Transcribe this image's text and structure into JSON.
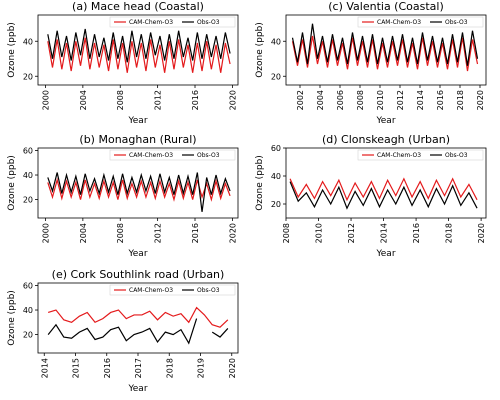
{
  "chart_data": [
    {
      "type": "line",
      "title": "(a) Mace head  (Coastal)",
      "xlabel": "Year",
      "ylabel": "Ozone (ppb)",
      "legend": "upper right",
      "xlim": [
        1999.2,
        2020.6
      ],
      "ylim": [
        15,
        55
      ],
      "xticks": [
        2000,
        2004,
        2008,
        2012,
        2016,
        2020
      ],
      "yticks": [
        20,
        40
      ],
      "x": [
        2000.25,
        2000.75,
        2001.25,
        2001.75,
        2002.25,
        2002.75,
        2003.25,
        2003.75,
        2004.25,
        2004.75,
        2005.25,
        2005.75,
        2006.25,
        2006.75,
        2007.25,
        2007.75,
        2008.25,
        2008.75,
        2009.25,
        2009.75,
        2010.25,
        2010.75,
        2011.25,
        2011.75,
        2012.25,
        2012.75,
        2013.25,
        2013.75,
        2014.25,
        2014.75,
        2015.25,
        2015.75,
        2016.25,
        2016.75,
        2017.25,
        2017.75,
        2018.25,
        2018.75,
        2019.25,
        2019.75
      ],
      "series": [
        {
          "name": "CAM-Chem-O3",
          "color": "#e41a1c",
          "values": [
            40,
            25,
            41,
            24,
            39,
            23,
            40,
            26,
            42,
            24,
            39,
            25,
            38,
            23,
            41,
            24,
            39,
            22,
            40,
            25,
            39,
            23,
            41,
            25,
            38,
            22,
            40,
            24,
            41,
            25,
            38,
            22,
            39,
            23,
            40,
            24,
            38,
            22,
            39,
            27
          ]
        },
        {
          "name": "Obs-O3",
          "color": "#000000",
          "values": [
            44,
            30,
            46,
            31,
            43,
            29,
            45,
            32,
            47,
            30,
            44,
            31,
            42,
            29,
            45,
            30,
            43,
            28,
            46,
            31,
            44,
            30,
            45,
            32,
            43,
            29,
            44,
            30,
            46,
            31,
            42,
            29,
            45,
            30,
            44,
            31,
            43,
            30,
            45,
            33
          ]
        }
      ]
    },
    {
      "type": "line",
      "title": "(c) Valentia (Coastal)",
      "xlabel": "Year",
      "ylabel": "Ozone (ppb)",
      "legend": "upper right",
      "xlim": [
        2000.6,
        2020.6
      ],
      "ylim": [
        15,
        55
      ],
      "xticks": [
        2002,
        2004,
        2006,
        2008,
        2010,
        2012,
        2014,
        2016,
        2018,
        2020
      ],
      "yticks": [
        20,
        40
      ],
      "x": [
        2001.25,
        2001.75,
        2002.25,
        2002.75,
        2003.25,
        2003.75,
        2004.25,
        2004.75,
        2005.25,
        2005.75,
        2006.25,
        2006.75,
        2007.25,
        2007.75,
        2008.25,
        2008.75,
        2009.25,
        2009.75,
        2010.25,
        2010.75,
        2011.25,
        2011.75,
        2012.25,
        2012.75,
        2013.25,
        2013.75,
        2014.25,
        2014.75,
        2015.25,
        2015.75,
        2016.25,
        2016.75,
        2017.25,
        2017.75,
        2018.25,
        2018.75,
        2019.25,
        2019.75
      ],
      "series": [
        {
          "name": "CAM-Chem-O3",
          "color": "#e41a1c",
          "values": [
            40,
            26,
            41,
            25,
            43,
            27,
            40,
            25,
            41,
            26,
            39,
            24,
            42,
            26,
            40,
            25,
            41,
            24,
            39,
            25,
            40,
            26,
            41,
            25,
            39,
            24,
            42,
            26,
            40,
            25,
            39,
            24,
            41,
            25,
            42,
            23,
            41,
            27
          ]
        },
        {
          "name": "Obs-O3",
          "color": "#000000",
          "values": [
            42,
            28,
            45,
            27,
            50,
            30,
            43,
            28,
            44,
            29,
            42,
            27,
            45,
            29,
            43,
            28,
            44,
            27,
            42,
            28,
            43,
            29,
            44,
            28,
            42,
            27,
            45,
            29,
            43,
            28,
            42,
            27,
            44,
            28,
            45,
            26,
            46,
            30
          ]
        }
      ]
    },
    {
      "type": "line",
      "title": "(b) Monaghan (Rural)",
      "xlabel": "Year",
      "ylabel": "Ozone (ppb)",
      "legend": "upper right",
      "xlim": [
        1999.2,
        2020.6
      ],
      "ylim": [
        5,
        62
      ],
      "xticks": [
        2000,
        2004,
        2008,
        2012,
        2016,
        2020
      ],
      "yticks": [
        20,
        40,
        60
      ],
      "x": [
        2000.25,
        2000.75,
        2001.25,
        2001.75,
        2002.25,
        2002.75,
        2003.25,
        2003.75,
        2004.25,
        2004.75,
        2005.25,
        2005.75,
        2006.25,
        2006.75,
        2007.25,
        2007.75,
        2008.25,
        2008.75,
        2009.25,
        2009.75,
        2010.25,
        2010.75,
        2011.25,
        2011.75,
        2012.25,
        2012.75,
        2013.25,
        2013.75,
        2014.25,
        2014.75,
        2015.25,
        2015.75,
        2016.25,
        2016.75,
        2017.25,
        2017.75,
        2018.25,
        2018.75,
        2019.25,
        2019.75
      ],
      "series": [
        {
          "name": "CAM-Chem-O3",
          "color": "#e41a1c",
          "values": [
            34,
            22,
            36,
            21,
            35,
            22,
            34,
            20,
            36,
            22,
            33,
            21,
            35,
            22,
            34,
            20,
            36,
            21,
            33,
            22,
            35,
            22,
            34,
            21,
            35,
            22,
            33,
            20,
            35,
            21,
            34,
            20,
            36,
            22,
            33,
            20,
            35,
            21,
            33,
            23
          ]
        },
        {
          "name": "Obs-O3",
          "color": "#000000",
          "values": [
            38,
            27,
            42,
            25,
            40,
            26,
            39,
            24,
            41,
            27,
            37,
            25,
            40,
            26,
            39,
            24,
            41,
            25,
            38,
            26,
            40,
            27,
            39,
            25,
            41,
            26,
            38,
            24,
            40,
            25,
            39,
            24,
            42,
            10,
            38,
            24,
            40,
            25,
            37,
            27
          ]
        }
      ]
    },
    {
      "type": "line",
      "title": "(d) Clonskeagh (Urban)",
      "xlabel": "Year",
      "ylabel": "Ozone (ppb)",
      "legend": "upper right",
      "xlim": [
        2008.0,
        2020.3
      ],
      "ylim": [
        10,
        60
      ],
      "xticks": [
        2008,
        2010,
        2012,
        2014,
        2016,
        2018,
        2020
      ],
      "yticks": [
        20,
        40,
        60
      ],
      "x": [
        2008.25,
        2008.75,
        2009.25,
        2009.75,
        2010.25,
        2010.75,
        2011.25,
        2011.75,
        2012.25,
        2012.75,
        2013.25,
        2013.75,
        2014.25,
        2014.75,
        2015.25,
        2015.75,
        2016.25,
        2016.75,
        2017.25,
        2017.75,
        2018.25,
        2018.75,
        2019.25,
        2019.75
      ],
      "series": [
        {
          "name": "CAM-Chem-O3",
          "color": "#e41a1c",
          "values": [
            38,
            25,
            34,
            24,
            36,
            26,
            37,
            23,
            35,
            25,
            36,
            24,
            37,
            26,
            38,
            25,
            36,
            24,
            37,
            26,
            38,
            25,
            34,
            23
          ]
        },
        {
          "name": "Obs-O3",
          "color": "#000000",
          "values": [
            36,
            22,
            28,
            18,
            30,
            20,
            32,
            17,
            29,
            19,
            31,
            18,
            30,
            20,
            32,
            19,
            30,
            18,
            31,
            20,
            33,
            19,
            28,
            17
          ]
        }
      ]
    },
    {
      "type": "line",
      "title": "(e) Cork Southlink road (Urban)",
      "xlabel": "Year",
      "ylabel": "Ozone (ppb)",
      "legend": "upper right",
      "xlim": [
        2013.8,
        2020.2
      ],
      "ylim": [
        5,
        62
      ],
      "xticks": [
        2014,
        2015,
        2016,
        2017,
        2018,
        2019,
        2020
      ],
      "yticks": [
        20,
        40,
        60
      ],
      "x": [
        2014.125,
        2014.375,
        2014.625,
        2014.875,
        2015.125,
        2015.375,
        2015.625,
        2015.875,
        2016.125,
        2016.375,
        2016.625,
        2016.875,
        2017.125,
        2017.375,
        2017.625,
        2017.875,
        2018.125,
        2018.375,
        2018.625,
        2018.875,
        2019.125,
        2019.375,
        2019.625,
        2019.875
      ],
      "series": [
        {
          "name": "CAM-Chem-O3",
          "color": "#e41a1c",
          "values": [
            38,
            40,
            32,
            30,
            35,
            38,
            30,
            33,
            38,
            40,
            33,
            36,
            36,
            39,
            32,
            38,
            35,
            37,
            30,
            42,
            36,
            28,
            26,
            32
          ]
        },
        {
          "name": "Obs-O3",
          "color": "#000000",
          "values": [
            20,
            28,
            18,
            17,
            22,
            25,
            16,
            18,
            24,
            26,
            15,
            20,
            22,
            25,
            14,
            22,
            20,
            24,
            13,
            33,
            null,
            22,
            18,
            25
          ]
        }
      ]
    }
  ]
}
